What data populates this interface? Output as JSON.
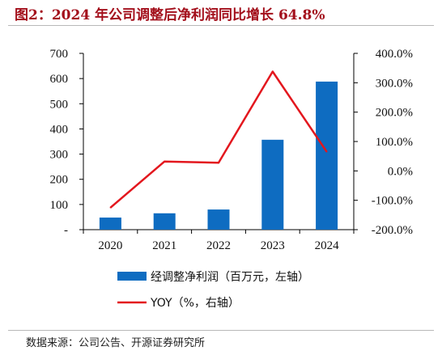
{
  "page": {
    "title": "图2：2024 年公司调整后净利润同比增长 64.8%",
    "source": "数据来源：公司公告、开源证券研究所"
  },
  "chart_data": {
    "type": "bar",
    "categories": [
      "2020",
      "2021",
      "2022",
      "2023",
      "2024"
    ],
    "series": [
      {
        "name": "经调整净利润（百万元，左轴）",
        "type": "bar",
        "axis": "left",
        "color": "#0e6cc1",
        "values": [
          48,
          65,
          80,
          357,
          588
        ]
      },
      {
        "name": "YOY（%，右轴）",
        "type": "line",
        "axis": "right",
        "color": "#e3171e",
        "values": [
          -125.0,
          32.0,
          28.0,
          338.0,
          65.0
        ]
      }
    ],
    "y_left": {
      "lim": [
        0,
        700
      ],
      "ticks": [
        0,
        100,
        200,
        300,
        400,
        500,
        600,
        700
      ],
      "tick_labels": [
        "-",
        "100",
        "200",
        "300",
        "400",
        "500",
        "600",
        "700"
      ]
    },
    "y_right": {
      "lim": [
        -200,
        400
      ],
      "ticks": [
        -200,
        -100,
        0,
        100,
        200,
        300,
        400
      ],
      "tick_labels": [
        "-200.0%",
        "-100.0%",
        "0.0%",
        "100.0%",
        "200.0%",
        "300.0%",
        "400.0%"
      ]
    },
    "legend_position": "bottom",
    "grid": false
  }
}
